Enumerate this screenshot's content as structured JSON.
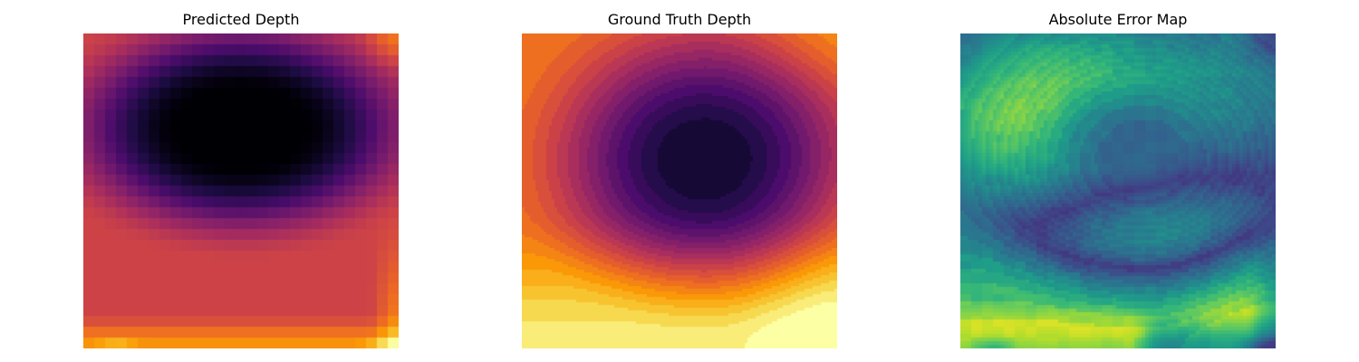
{
  "panels": [
    {
      "title": "Predicted Depth",
      "colormap": "inferno"
    },
    {
      "title": "Ground Truth Depth",
      "colormap": "inferno"
    },
    {
      "title": "Absolute Error Map",
      "colormap": "viridis"
    }
  ],
  "colormaps": {
    "inferno": [
      "#000004",
      "#1b0c41",
      "#4a0c6b",
      "#781c6d",
      "#a52c60",
      "#cf4446",
      "#ed6925",
      "#fb9b06",
      "#f7d13d",
      "#fcffa4"
    ],
    "viridis": [
      "#440154",
      "#482878",
      "#3e4989",
      "#31688e",
      "#26828e",
      "#1f9e89",
      "#35b779",
      "#6ece58",
      "#b5de2b",
      "#fde725"
    ]
  }
}
